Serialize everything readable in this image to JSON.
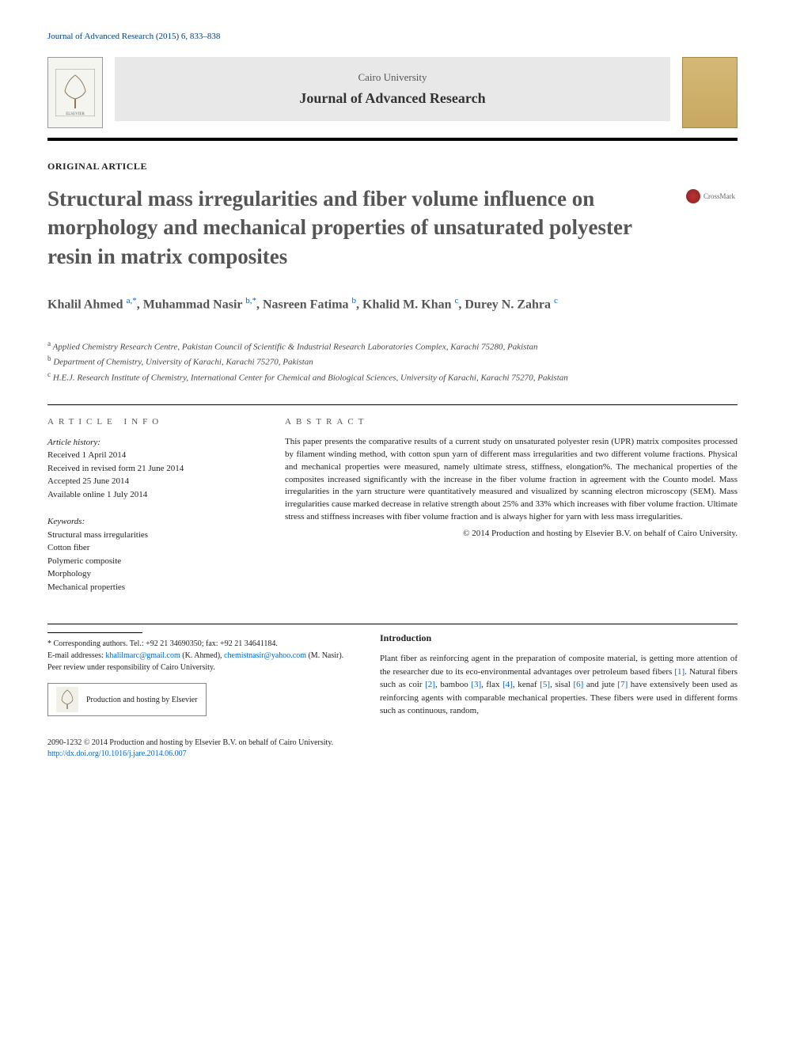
{
  "header": {
    "citation": "Journal of Advanced Research (2015) 6, 833–838",
    "university": "Cairo University",
    "journal_name": "Journal of Advanced Research",
    "elsevier_alt": "ELSEVIER"
  },
  "article": {
    "type": "ORIGINAL ARTICLE",
    "title": "Structural mass irregularities and fiber volume influence on morphology and mechanical properties of unsaturated polyester resin in matrix composites",
    "crossmark": "CrossMark"
  },
  "authors_html": "Khalil Ahmed <sup>a,*</sup>, Muhammad Nasir <sup>b,*</sup>, Nasreen Fatima <sup>b</sup>, Khalid M. Khan <sup>c</sup>, Durey N. Zahra <sup>c</sup>",
  "affiliations": [
    {
      "sup": "a",
      "text": "Applied Chemistry Research Centre, Pakistan Council of Scientific & Industrial Research Laboratories Complex, Karachi 75280, Pakistan"
    },
    {
      "sup": "b",
      "text": "Department of Chemistry, University of Karachi, Karachi 75270, Pakistan"
    },
    {
      "sup": "c",
      "text": "H.E.J. Research Institute of Chemistry, International Center for Chemical and Biological Sciences, University of Karachi, Karachi 75270, Pakistan"
    }
  ],
  "article_info": {
    "header": "ARTICLE INFO",
    "history_label": "Article history:",
    "history": [
      "Received 1 April 2014",
      "Received in revised form 21 June 2014",
      "Accepted 25 June 2014",
      "Available online 1 July 2014"
    ],
    "keywords_label": "Keywords:",
    "keywords": [
      "Structural mass irregularities",
      "Cotton fiber",
      "Polymeric composite",
      "Morphology",
      "Mechanical properties"
    ]
  },
  "abstract": {
    "header": "ABSTRACT",
    "text": "This paper presents the comparative results of a current study on unsaturated polyester resin (UPR) matrix composites processed by filament winding method, with cotton spun yarn of different mass irregularities and two different volume fractions. Physical and mechanical properties were measured, namely ultimate stress, stiffness, elongation%. The mechanical properties of the composites increased significantly with the increase in the fiber volume fraction in agreement with the Counto model. Mass irregularities in the yarn structure were quantitatively measured and visualized by scanning electron microscopy (SEM). Mass irregularities cause marked decrease in relative strength about 25% and 33% which increases with fiber volume fraction. Ultimate stress and stiffness increases with fiber volume fraction and is always higher for yarn with less mass irregularities.",
    "copyright": "© 2014 Production and hosting by Elsevier B.V. on behalf of Cairo University."
  },
  "footnotes": {
    "corresponding": "* Corresponding authors. Tel.: +92 21 34690350; fax: +92 21 34641184.",
    "email_label": "E-mail addresses:",
    "emails": [
      {
        "addr": "khalilmarc@gmail.com",
        "who": "(K. Ahmed)"
      },
      {
        "addr": "chemistnasir@yahoo.com",
        "who": "(M. Nasir)"
      }
    ],
    "peer_review": "Peer review under responsibility of Cairo University.",
    "hosting": "Production and hosting by Elsevier"
  },
  "introduction": {
    "heading": "Introduction",
    "text_parts": [
      "Plant fiber as reinforcing agent in the preparation of composite material, is getting more attention of the researcher due to its eco-environmental advantages over petroleum based fibers ",
      "[1]",
      ". Natural fibers such as coir ",
      "[2]",
      ", bamboo ",
      "[3]",
      ", flax ",
      "[4]",
      ", kenaf ",
      "[5]",
      ", sisal ",
      "[6]",
      " and jute ",
      "[7]",
      " have extensively been used as reinforcing agents with comparable mechanical properties. These fibers were used in different forms such as continuous, random,"
    ]
  },
  "footer": {
    "issn_line": "2090-1232 © 2014 Production and hosting by Elsevier B.V. on behalf of Cairo University.",
    "doi": "http://dx.doi.org/10.1016/j.jare.2014.06.007"
  },
  "colors": {
    "link": "#0066cc",
    "title_gray": "#555555",
    "banner_bg": "#e8e8e8"
  }
}
